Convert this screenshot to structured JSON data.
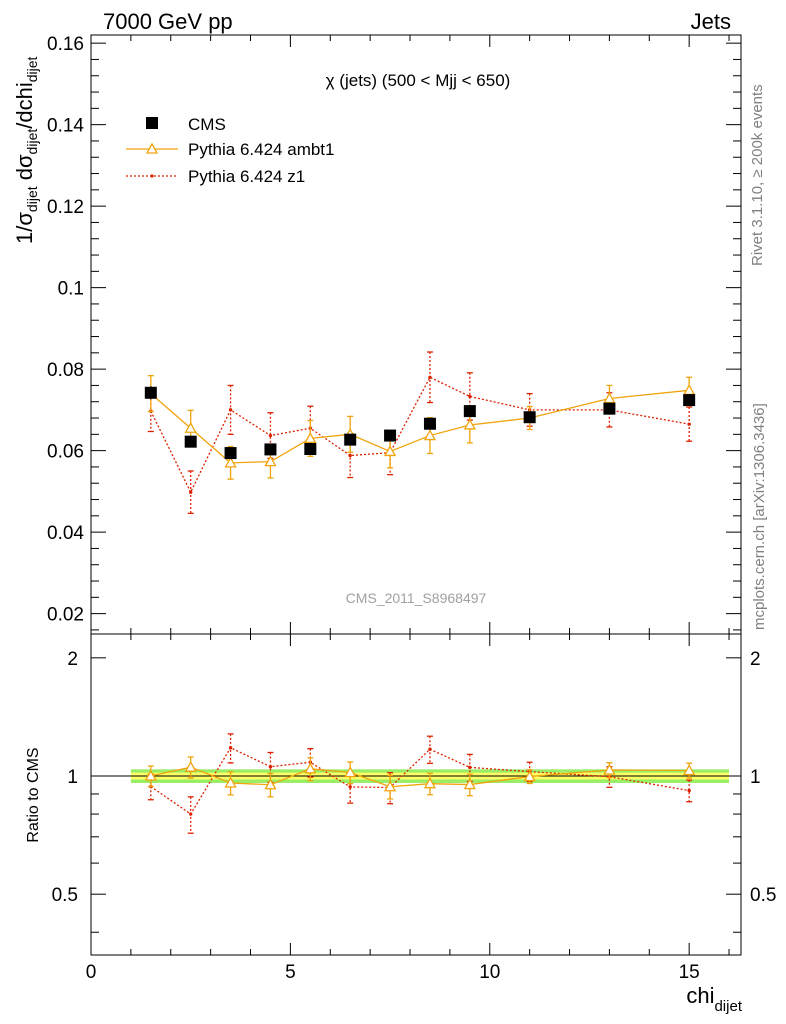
{
  "header": {
    "left": "7000 GeV pp",
    "right": "Jets"
  },
  "side_labels": {
    "rivet": "Rivet 3.1.10, ≥ 200k events",
    "mcplots": "mcplots.cern.ch [arXiv:1306.3436]"
  },
  "colors": {
    "cms": "#000000",
    "ambt1": "#f0a30a",
    "z1": "#dd2200",
    "band_inner": "#ffff66",
    "band_outer": "#99ee66"
  },
  "chart_data": [
    {
      "type": "scatter",
      "title": "χ (jets) (500 < Mjj <  650)",
      "watermark": "CMS_2011_S8968497",
      "ylabel": {
        "main": "1/σ",
        "sub1": "dijet",
        "mid": " dσ",
        "sub2": "dijet",
        "tail": "/dchi",
        "sub3": "dijet"
      },
      "xlim": [
        0,
        16.3
      ],
      "ylim": [
        0.015,
        0.162
      ],
      "yticks": [
        0.02,
        0.04,
        0.06,
        0.08,
        0.1,
        0.12,
        0.14,
        0.16
      ],
      "ytick_labels": [
        "0.02",
        "0.04",
        "0.06",
        "0.08",
        "0.1",
        "0.12",
        "0.14",
        "0.16"
      ],
      "legend": [
        "CMS",
        "Pythia 6.424 ambt1",
        "Pythia 6.424 z1"
      ],
      "series": [
        {
          "name": "CMS",
          "x": [
            1.5,
            2.5,
            3.5,
            4.5,
            5.5,
            6.5,
            7.5,
            8.5,
            9.5,
            11,
            13,
            15
          ],
          "y": [
            0.0742,
            0.0622,
            0.0594,
            0.0603,
            0.0604,
            0.0627,
            0.0637,
            0.0666,
            0.0697,
            0.0682,
            0.0703,
            0.0724
          ],
          "err": [
            0.0016,
            0.0012,
            0.0012,
            0.0012,
            0.0012,
            0.0012,
            0.0012,
            0.0012,
            0.0013,
            0.0013,
            0.0014,
            0.0014
          ]
        },
        {
          "name": "Pythia 6.424 ambt1",
          "x": [
            1.5,
            2.5,
            3.5,
            4.5,
            5.5,
            6.5,
            7.5,
            8.5,
            9.5,
            11,
            13,
            15
          ],
          "y": [
            0.074,
            0.0655,
            0.057,
            0.0573,
            0.063,
            0.064,
            0.0598,
            0.0637,
            0.0663,
            0.068,
            0.0728,
            0.0748
          ],
          "err": [
            0.0044,
            0.0044,
            0.004,
            0.004,
            0.0044,
            0.0044,
            0.004,
            0.0044,
            0.0044,
            0.0028,
            0.0032,
            0.0032
          ]
        },
        {
          "name": "Pythia 6.424 z1",
          "x": [
            1.5,
            2.5,
            3.5,
            4.5,
            5.5,
            6.5,
            7.5,
            8.5,
            9.5,
            11,
            13,
            15
          ],
          "y": [
            0.0697,
            0.0498,
            0.07,
            0.0637,
            0.0655,
            0.0588,
            0.0595,
            0.078,
            0.0733,
            0.07,
            0.07,
            0.0665
          ],
          "err": [
            0.005,
            0.0052,
            0.006,
            0.0056,
            0.0054,
            0.0054,
            0.0054,
            0.0062,
            0.0058,
            0.004,
            0.0042,
            0.0042
          ]
        }
      ]
    },
    {
      "type": "scatter",
      "ylabel": "Ratio to CMS",
      "xlabel": {
        "main": "chi",
        "sub": "dijet"
      },
      "xlim": [
        0,
        16.3
      ],
      "ylim": [
        0.35,
        2.3
      ],
      "log_y": true,
      "xticks": [
        0,
        5,
        10,
        15
      ],
      "xtick_labels": [
        "0",
        "5",
        "10",
        "15"
      ],
      "yticks": [
        0.5,
        1,
        2
      ],
      "ytick_labels": [
        "0.5",
        "1",
        "2"
      ],
      "band": {
        "x": [
          1,
          16
        ],
        "inner": 0.02,
        "outer": 0.04
      },
      "series": [
        {
          "name": "Pythia 6.424 ambt1",
          "x": [
            1.5,
            2.5,
            3.5,
            4.5,
            5.5,
            6.5,
            7.5,
            8.5,
            9.5,
            11,
            13,
            15
          ],
          "y": [
            1.0,
            1.053,
            0.96,
            0.95,
            1.043,
            1.021,
            0.939,
            0.956,
            0.951,
            0.997,
            1.036,
            1.033
          ],
          "err": [
            0.06,
            0.065,
            0.065,
            0.065,
            0.07,
            0.065,
            0.065,
            0.06,
            0.06,
            0.04,
            0.045,
            0.045
          ]
        },
        {
          "name": "Pythia 6.424 z1",
          "x": [
            1.5,
            2.5,
            3.5,
            4.5,
            5.5,
            6.5,
            7.5,
            8.5,
            9.5,
            11,
            13,
            15
          ],
          "y": [
            0.94,
            0.8,
            1.18,
            1.056,
            1.084,
            0.938,
            0.935,
            1.17,
            1.052,
            1.026,
            0.996,
            0.918
          ],
          "err": [
            0.07,
            0.085,
            0.1,
            0.092,
            0.09,
            0.085,
            0.085,
            0.093,
            0.083,
            0.058,
            0.06,
            0.058
          ]
        }
      ]
    }
  ]
}
